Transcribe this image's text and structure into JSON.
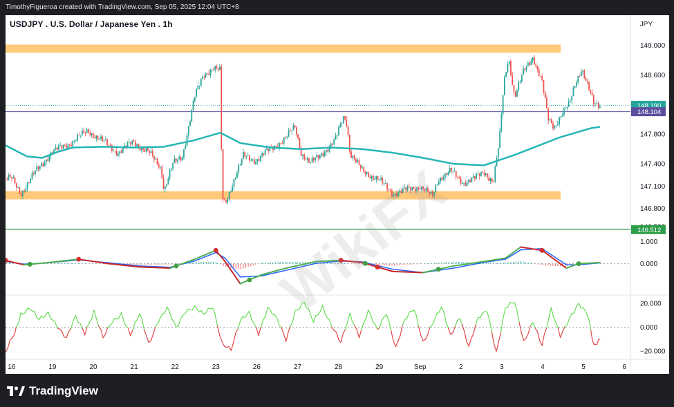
{
  "header": {
    "caption": "TimothyFigueroa created with TradingView.com, Sep 05, 2025 12:04 UTC+8"
  },
  "chart": {
    "title": "USDJPY . U.S. Dollar / Japanese Yen . 1h",
    "currency": "JPY"
  },
  "footer": {
    "brand": "TradingView"
  },
  "watermark": "WikiFX",
  "colors": {
    "up": "#26a69a",
    "down": "#ef5350",
    "ma": "#26b5b5",
    "zone": "#ffb74d",
    "line_purple": "#5c4f9e",
    "line_green": "#2e9e4a",
    "macd_fast": "#2962ff",
    "macd_slow": "#4caf50",
    "osc_green": "#66dd55",
    "osc_red": "#e04848"
  },
  "chart_data": [
    {
      "type": "candlestick",
      "title": "USDJPY . U.S. Dollar / Japanese Yen . 1h",
      "x_ticks": [
        "16",
        "19",
        "20",
        "21",
        "22",
        "23",
        "26",
        "27",
        "28",
        "29",
        "Sep",
        "2",
        "3",
        "4",
        "5",
        "6"
      ],
      "y_ticks": [
        149.0,
        148.6,
        147.8,
        147.4,
        147.1,
        146.8
      ],
      "ylim": [
        146.58,
        149.22
      ],
      "price_labels": {
        "last": "148.190",
        "purple_line": "148.104",
        "green_line": "146.512",
        "partial": "146.500"
      },
      "horizontal_lines": [
        148.104,
        146.512
      ],
      "zones": [
        [
          148.9,
          149.01
        ],
        [
          146.92,
          147.03
        ]
      ],
      "close_path": [
        [
          16.0,
          147.2
        ],
        [
          16.3,
          147.0
        ],
        [
          16.8,
          147.3
        ],
        [
          17.3,
          147.55
        ],
        [
          18.0,
          147.7
        ],
        [
          18.5,
          147.85
        ],
        [
          19.0,
          147.7
        ],
        [
          19.5,
          147.55
        ],
        [
          20.0,
          147.7
        ],
        [
          20.5,
          147.55
        ],
        [
          20.9,
          147.35
        ],
        [
          21.0,
          147.05
        ],
        [
          21.3,
          147.4
        ],
        [
          21.6,
          147.5
        ],
        [
          21.8,
          147.9
        ],
        [
          22.0,
          148.3
        ],
        [
          22.3,
          148.6
        ],
        [
          22.6,
          148.7
        ],
        [
          22.85,
          148.65
        ],
        [
          22.9,
          146.95
        ],
        [
          23.0,
          146.85
        ],
        [
          23.3,
          147.2
        ],
        [
          23.6,
          147.5
        ],
        [
          24.0,
          147.45
        ],
        [
          24.5,
          147.6
        ],
        [
          25.0,
          147.75
        ],
        [
          25.3,
          147.9
        ],
        [
          25.5,
          147.55
        ],
        [
          25.8,
          147.4
        ],
        [
          26.2,
          147.55
        ],
        [
          26.6,
          147.7
        ],
        [
          26.9,
          148.05
        ],
        [
          27.0,
          147.95
        ],
        [
          27.1,
          147.55
        ],
        [
          27.5,
          147.3
        ],
        [
          28.0,
          147.2
        ],
        [
          28.5,
          147.0
        ],
        [
          29.0,
          147.05
        ],
        [
          29.4,
          147.1
        ],
        [
          29.8,
          146.95
        ],
        [
          30.0,
          147.2
        ],
        [
          30.4,
          147.3
        ],
        [
          30.8,
          147.15
        ],
        [
          31.2,
          147.2
        ],
        [
          31.5,
          147.3
        ],
        [
          31.8,
          147.15
        ],
        [
          32.0,
          147.7
        ],
        [
          32.15,
          148.5
        ],
        [
          32.3,
          148.85
        ],
        [
          32.5,
          148.3
        ],
        [
          32.8,
          148.65
        ],
        [
          33.1,
          148.85
        ],
        [
          33.4,
          148.5
        ],
        [
          33.6,
          148.0
        ],
        [
          33.8,
          147.9
        ],
        [
          34.0,
          148.05
        ],
        [
          34.3,
          148.2
        ],
        [
          34.5,
          148.5
        ],
        [
          34.7,
          148.7
        ],
        [
          34.9,
          148.45
        ],
        [
          35.1,
          148.2
        ],
        [
          35.3,
          148.19
        ]
      ],
      "ma_path": [
        [
          15.8,
          147.65
        ],
        [
          16.5,
          147.5
        ],
        [
          17.0,
          147.48
        ],
        [
          17.5,
          147.56
        ],
        [
          18.0,
          147.62
        ],
        [
          19.0,
          147.63
        ],
        [
          20.0,
          147.62
        ],
        [
          21.0,
          147.63
        ],
        [
          22.0,
          147.72
        ],
        [
          22.85,
          147.82
        ],
        [
          23.5,
          147.68
        ],
        [
          24.5,
          147.62
        ],
        [
          25.5,
          147.6
        ],
        [
          26.5,
          147.62
        ],
        [
          27.5,
          147.6
        ],
        [
          28.5,
          147.55
        ],
        [
          29.5,
          147.48
        ],
        [
          30.5,
          147.4
        ],
        [
          31.5,
          147.38
        ],
        [
          32.0,
          147.45
        ],
        [
          32.5,
          147.52
        ],
        [
          33.5,
          147.68
        ],
        [
          34.0,
          147.76
        ],
        [
          34.5,
          147.82
        ],
        [
          35.0,
          147.88
        ],
        [
          35.3,
          147.9
        ]
      ]
    },
    {
      "type": "line",
      "name": "macd",
      "y_ticks": [
        1.0,
        0.0
      ],
      "ylim": [
        -1.35,
        1.45
      ],
      "series": [
        {
          "path": [
            [
              15.8,
              0.15
            ],
            [
              16.4,
              -0.05
            ],
            [
              17.2,
              0.05
            ],
            [
              18.2,
              0.2
            ],
            [
              19.2,
              0.0
            ],
            [
              20.2,
              -0.15
            ],
            [
              21.2,
              -0.2
            ],
            [
              22.0,
              0.2
            ],
            [
              22.7,
              0.6
            ],
            [
              23.0,
              0.1
            ],
            [
              23.5,
              -0.9
            ],
            [
              24.2,
              -0.5
            ],
            [
              25.0,
              -0.2
            ],
            [
              26.0,
              0.1
            ],
            [
              26.8,
              0.15
            ],
            [
              27.5,
              0.05
            ],
            [
              28.5,
              -0.35
            ],
            [
              29.5,
              -0.4
            ],
            [
              30.5,
              -0.1
            ],
            [
              31.5,
              0.1
            ],
            [
              32.2,
              0.25
            ],
            [
              32.7,
              0.75
            ],
            [
              33.4,
              0.6
            ],
            [
              34.2,
              -0.2
            ],
            [
              34.6,
              0.0
            ],
            [
              35.3,
              0.05
            ]
          ]
        },
        {
          "path": [
            [
              15.8,
              0.1
            ],
            [
              16.4,
              -0.02
            ],
            [
              17.2,
              0.04
            ],
            [
              18.2,
              0.17
            ],
            [
              19.2,
              0.04
            ],
            [
              20.2,
              -0.1
            ],
            [
              21.2,
              -0.16
            ],
            [
              22.0,
              0.12
            ],
            [
              22.7,
              0.5
            ],
            [
              23.0,
              0.25
            ],
            [
              23.5,
              -0.6
            ],
            [
              24.2,
              -0.55
            ],
            [
              25.0,
              -0.3
            ],
            [
              26.0,
              0.02
            ],
            [
              26.8,
              0.12
            ],
            [
              27.5,
              0.08
            ],
            [
              28.5,
              -0.25
            ],
            [
              29.5,
              -0.4
            ],
            [
              30.5,
              -0.2
            ],
            [
              31.5,
              0.06
            ],
            [
              32.2,
              0.2
            ],
            [
              32.7,
              0.62
            ],
            [
              33.4,
              0.68
            ],
            [
              34.2,
              -0.05
            ],
            [
              34.6,
              -0.05
            ],
            [
              35.3,
              0.04
            ]
          ]
        }
      ],
      "cross_markers_red": [
        15.8,
        18.2,
        22.7,
        26.8,
        28.0,
        33.4
      ],
      "cross_markers_green": [
        16.6,
        21.4,
        23.8,
        27.6,
        30.0,
        34.6
      ]
    },
    {
      "type": "line",
      "name": "oscillator",
      "y_ticks": [
        20.0,
        0.0,
        -20.0
      ],
      "ylim": [
        -28,
        28
      ],
      "path": [
        [
          15.8,
          -22
        ],
        [
          16.1,
          -5
        ],
        [
          16.3,
          12
        ],
        [
          16.6,
          16
        ],
        [
          16.9,
          5
        ],
        [
          17.2,
          12
        ],
        [
          17.5,
          2
        ],
        [
          17.8,
          -10
        ],
        [
          18.1,
          8
        ],
        [
          18.4,
          -4
        ],
        [
          18.7,
          14
        ],
        [
          19.0,
          -10
        ],
        [
          19.3,
          4
        ],
        [
          19.6,
          12
        ],
        [
          19.9,
          -6
        ],
        [
          20.2,
          10
        ],
        [
          20.5,
          -14
        ],
        [
          20.8,
          6
        ],
        [
          21.1,
          16
        ],
        [
          21.4,
          -2
        ],
        [
          21.7,
          14
        ],
        [
          22.0,
          18
        ],
        [
          22.3,
          10
        ],
        [
          22.6,
          16
        ],
        [
          22.9,
          -12
        ],
        [
          23.2,
          -18
        ],
        [
          23.5,
          4
        ],
        [
          23.8,
          12
        ],
        [
          24.1,
          -4
        ],
        [
          24.4,
          16
        ],
        [
          24.7,
          6
        ],
        [
          25.0,
          -10
        ],
        [
          25.3,
          14
        ],
        [
          25.6,
          20
        ],
        [
          25.9,
          4
        ],
        [
          26.2,
          18
        ],
        [
          26.5,
          2
        ],
        [
          26.8,
          -14
        ],
        [
          27.1,
          10
        ],
        [
          27.4,
          -6
        ],
        [
          27.7,
          14
        ],
        [
          28.0,
          -4
        ],
        [
          28.3,
          12
        ],
        [
          28.6,
          -16
        ],
        [
          28.9,
          6
        ],
        [
          29.2,
          14
        ],
        [
          29.5,
          -12
        ],
        [
          29.8,
          4
        ],
        [
          30.1,
          16
        ],
        [
          30.4,
          -8
        ],
        [
          30.7,
          10
        ],
        [
          31.0,
          -16
        ],
        [
          31.3,
          6
        ],
        [
          31.6,
          14
        ],
        [
          31.9,
          -20
        ],
        [
          32.2,
          16
        ],
        [
          32.5,
          20
        ],
        [
          32.8,
          -12
        ],
        [
          33.1,
          6
        ],
        [
          33.4,
          -16
        ],
        [
          33.7,
          14
        ],
        [
          34.0,
          -6
        ],
        [
          34.3,
          8
        ],
        [
          34.6,
          18
        ],
        [
          34.9,
          10
        ],
        [
          35.1,
          -14
        ],
        [
          35.3,
          -10
        ]
      ]
    }
  ]
}
